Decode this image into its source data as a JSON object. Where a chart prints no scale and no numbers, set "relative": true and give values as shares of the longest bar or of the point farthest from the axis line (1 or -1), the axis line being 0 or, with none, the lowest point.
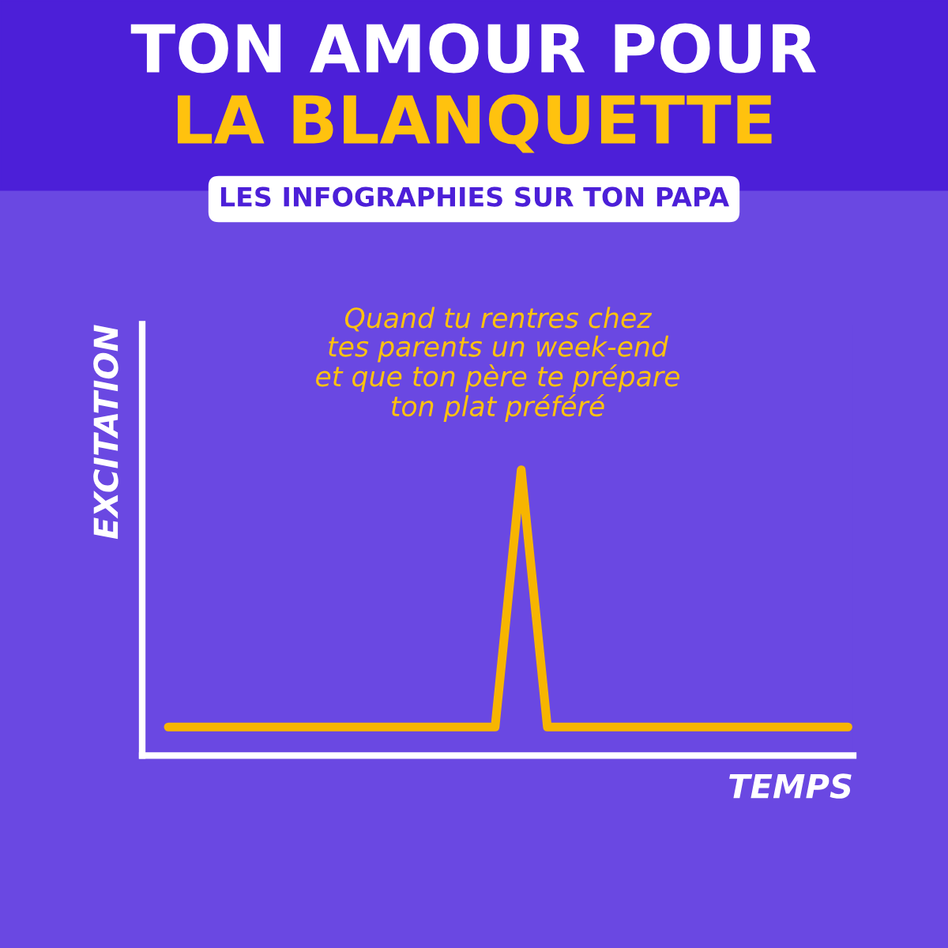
{
  "chart_data": {
    "type": "line",
    "title": "TON AMOUR POUR\nLA BLANQUETTE",
    "subtitle": "LES INFOGRAPHIES SUR TON PAPA",
    "xlabel": "TEMPS",
    "ylabel": "EXCITATION",
    "relative": true,
    "annotations": [
      "Quand tu rentres chez\ntes parents un week-end\net que ton père te prépare\nton plat préféré"
    ],
    "categories": [
      null,
      null,
      null,
      null,
      null,
      null,
      null,
      null,
      null,
      null,
      null,
      null,
      null,
      null,
      null,
      null,
      null,
      null,
      null,
      null,
      null,
      null,
      null,
      null,
      null,
      null,
      null,
      null,
      null,
      null,
      null,
      null,
      null,
      null,
      null,
      null,
      null,
      null,
      null,
      null,
      null,
      null,
      null,
      null,
      null,
      null,
      null,
      null,
      null,
      null,
      null,
      null,
      null
    ],
    "series": [
      {
        "color": "#f7b500",
        "values": [
          0.1,
          0.1,
          0.1,
          0.1,
          0.1,
          0.1,
          0.1,
          0.1,
          0.1,
          0.1,
          0.1,
          0.1,
          0.1,
          0.1,
          0.1,
          0.1,
          0.1,
          0.1,
          0.1,
          0.1,
          0.1,
          0.1,
          0.1,
          0.1,
          0.1,
          0.1,
          0.55,
          1,
          0.55,
          0.1,
          0.1,
          0.1,
          0.1,
          0.1,
          0.1,
          0.1,
          0.1,
          0.1,
          0.1,
          0.1,
          0.1,
          0.1,
          0.1,
          0.1,
          0.1,
          0.1,
          0.1,
          0.1,
          0.1,
          0.1,
          0.1,
          0.1,
          0.1
        ]
      }
    ],
    "legend": false,
    "marker": "none",
    "line_style": "solid"
  }
}
